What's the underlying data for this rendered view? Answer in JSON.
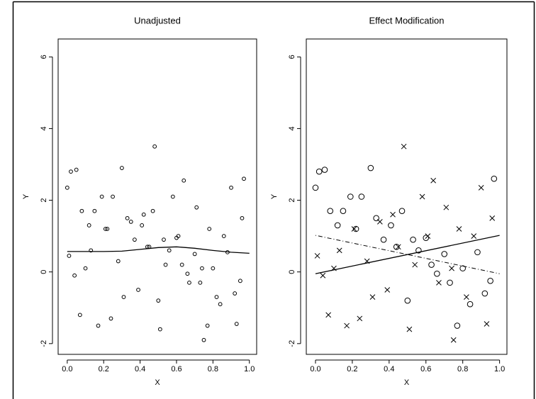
{
  "chart_data": [
    {
      "type": "scatter",
      "title": "Unadjusted",
      "xlabel": "X",
      "ylabel": "Y",
      "xlim": [
        -0.05,
        1.04
      ],
      "ylim": [
        -2.3,
        6.5
      ],
      "xticks": [
        {
          "value": 0,
          "label": "0.0"
        },
        {
          "value": 0.2,
          "label": "0.2"
        },
        {
          "value": 0.4,
          "label": "0.4"
        },
        {
          "value": 0.6,
          "label": "0.6"
        },
        {
          "value": 0.8,
          "label": "0.8"
        },
        {
          "value": 1,
          "label": "1.0"
        }
      ],
      "yticks": [
        -2,
        0,
        2,
        4,
        6
      ],
      "series": [
        {
          "marker": "o",
          "size": "small",
          "color": "#000000",
          "x": [
            0.0,
            0.02,
            0.05,
            0.08,
            0.12,
            0.15,
            0.19,
            0.22,
            0.25,
            0.3,
            0.33,
            0.37,
            0.41,
            0.44,
            0.47,
            0.5,
            0.53,
            0.56,
            0.6,
            0.63,
            0.66,
            0.7,
            0.73,
            0.77,
            0.8,
            0.84,
            0.88,
            0.92,
            0.95,
            0.97,
            0.01,
            0.04,
            0.07,
            0.1,
            0.13,
            0.17,
            0.21,
            0.24,
            0.28,
            0.31,
            0.35,
            0.39,
            0.42,
            0.45,
            0.48,
            0.51,
            0.54,
            0.58,
            0.61,
            0.64,
            0.67,
            0.71,
            0.74,
            0.75,
            0.78,
            0.82,
            0.86,
            0.9,
            0.93,
            0.96
          ],
          "values": [
            2.35,
            2.8,
            2.85,
            1.7,
            1.3,
            1.7,
            2.1,
            1.2,
            2.1,
            2.9,
            1.5,
            0.9,
            1.3,
            0.7,
            1.7,
            -0.8,
            0.9,
            0.6,
            0.95,
            0.2,
            -0.05,
            0.5,
            -0.3,
            -1.5,
            0.1,
            -0.9,
            0.55,
            -0.6,
            -0.25,
            2.6,
            0.45,
            -0.1,
            -1.2,
            0.1,
            0.6,
            -1.5,
            1.2,
            -1.3,
            0.3,
            -0.7,
            1.4,
            -0.5,
            1.6,
            0.7,
            3.5,
            -1.6,
            0.2,
            2.1,
            1.0,
            2.55,
            -0.3,
            1.8,
            0.1,
            -1.9,
            1.2,
            -0.7,
            1.0,
            2.35,
            -1.45,
            1.5
          ]
        }
      ],
      "lines": [
        {
          "style": "solid",
          "x": [
            0,
            0.1,
            0.2,
            0.3,
            0.4,
            0.5,
            0.6,
            0.7,
            0.8,
            0.9,
            1.0
          ],
          "values": [
            0.57,
            0.57,
            0.57,
            0.58,
            0.63,
            0.68,
            0.7,
            0.66,
            0.6,
            0.55,
            0.52
          ]
        }
      ]
    },
    {
      "type": "scatter",
      "title": "Effect Modification",
      "xlabel": "X",
      "ylabel": "Y",
      "xlim": [
        -0.05,
        1.04
      ],
      "ylim": [
        -2.3,
        6.5
      ],
      "xticks": [
        {
          "value": 0,
          "label": "0.0"
        },
        {
          "value": 0.2,
          "label": "0.2"
        },
        {
          "value": 0.4,
          "label": "0.4"
        },
        {
          "value": 0.6,
          "label": "0.6"
        },
        {
          "value": 0.8,
          "label": "0.8"
        },
        {
          "value": 1,
          "label": "1.0"
        }
      ],
      "yticks": [
        -2,
        0,
        2,
        4,
        6
      ],
      "series": [
        {
          "marker": "o",
          "size": "large",
          "color": "#000000",
          "x": [
            0.0,
            0.02,
            0.05,
            0.08,
            0.12,
            0.15,
            0.19,
            0.22,
            0.25,
            0.3,
            0.33,
            0.37,
            0.41,
            0.44,
            0.47,
            0.5,
            0.53,
            0.56,
            0.6,
            0.63,
            0.66,
            0.7,
            0.73,
            0.77,
            0.8,
            0.84,
            0.88,
            0.92,
            0.95,
            0.97
          ],
          "values": [
            2.35,
            2.8,
            2.85,
            1.7,
            1.3,
            1.7,
            2.1,
            1.2,
            2.1,
            2.9,
            1.5,
            0.9,
            1.3,
            0.7,
            1.7,
            -0.8,
            0.9,
            0.6,
            0.95,
            0.2,
            -0.05,
            0.5,
            -0.3,
            -1.5,
            0.1,
            -0.9,
            0.55,
            -0.6,
            -0.25,
            2.6
          ]
        },
        {
          "marker": "x",
          "size": "large",
          "color": "#000000",
          "x": [
            0.01,
            0.04,
            0.07,
            0.1,
            0.13,
            0.17,
            0.21,
            0.24,
            0.28,
            0.31,
            0.35,
            0.39,
            0.42,
            0.45,
            0.48,
            0.51,
            0.54,
            0.58,
            0.61,
            0.64,
            0.67,
            0.71,
            0.74,
            0.75,
            0.78,
            0.82,
            0.86,
            0.9,
            0.93,
            0.96
          ],
          "values": [
            0.45,
            -0.1,
            -1.2,
            0.1,
            0.6,
            -1.5,
            1.2,
            -1.3,
            0.3,
            -0.7,
            1.4,
            -0.5,
            1.6,
            0.7,
            3.5,
            -1.6,
            0.2,
            2.1,
            1.0,
            2.55,
            -0.3,
            1.8,
            0.1,
            -1.9,
            1.2,
            -0.7,
            1.0,
            2.35,
            -1.45,
            1.5
          ]
        }
      ],
      "lines": [
        {
          "style": "solid",
          "x": [
            0,
            1
          ],
          "values": [
            -0.05,
            1.02
          ]
        },
        {
          "style": "dashdot",
          "x": [
            0,
            1
          ],
          "values": [
            1.02,
            -0.05
          ]
        }
      ]
    }
  ]
}
